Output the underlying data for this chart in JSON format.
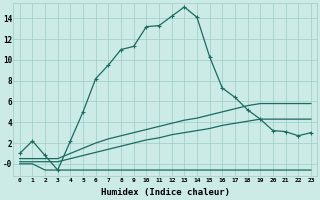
{
  "xlabel": "Humidex (Indice chaleur)",
  "bg_color": "#cceae6",
  "grid_color": "#9dccc6",
  "line_color": "#1a6b60",
  "xmin": -0.5,
  "xmax": 23.5,
  "ymin": -1.2,
  "ymax": 15.5,
  "ytick_vals": [
    0,
    2,
    4,
    6,
    8,
    10,
    12,
    14
  ],
  "ytick_labels": [
    "-0",
    "2",
    "4",
    "6",
    "8",
    "10",
    "12",
    "14"
  ],
  "xticks": [
    0,
    1,
    2,
    3,
    4,
    5,
    6,
    7,
    8,
    9,
    10,
    11,
    12,
    13,
    14,
    15,
    16,
    17,
    18,
    19,
    20,
    21,
    22,
    23
  ],
  "line1_x": [
    0,
    1,
    2,
    3,
    4,
    5,
    6,
    7,
    8,
    9,
    10,
    11,
    12,
    13,
    14,
    15,
    16,
    17,
    18,
    19,
    20,
    21,
    22,
    23
  ],
  "line1_y": [
    1.0,
    2.2,
    0.8,
    -0.6,
    2.2,
    5.0,
    8.2,
    9.5,
    11.0,
    11.3,
    13.2,
    13.3,
    14.2,
    15.1,
    14.1,
    10.3,
    7.3,
    6.4,
    5.2,
    4.3,
    3.2,
    3.1,
    2.7,
    3.0
  ],
  "line2_x": [
    0,
    1,
    2,
    3,
    4,
    5,
    6,
    7,
    8,
    9,
    10,
    11,
    12,
    13,
    14,
    15,
    16,
    17,
    18,
    19,
    20,
    21,
    22,
    23
  ],
  "line2_y": [
    0.5,
    0.5,
    0.5,
    0.5,
    1.0,
    1.5,
    2.0,
    2.4,
    2.7,
    3.0,
    3.3,
    3.6,
    3.9,
    4.2,
    4.4,
    4.7,
    5.0,
    5.3,
    5.6,
    5.8,
    5.8,
    5.8,
    5.8,
    5.8
  ],
  "line3_x": [
    0,
    1,
    2,
    3,
    4,
    5,
    6,
    7,
    8,
    9,
    10,
    11,
    12,
    13,
    14,
    15,
    16,
    17,
    18,
    19,
    20,
    21,
    22,
    23
  ],
  "line3_y": [
    0.2,
    0.2,
    0.2,
    0.2,
    0.5,
    0.8,
    1.1,
    1.4,
    1.7,
    2.0,
    2.3,
    2.5,
    2.8,
    3.0,
    3.2,
    3.4,
    3.7,
    3.9,
    4.1,
    4.3,
    4.3,
    4.3,
    4.3,
    4.3
  ],
  "line4_x": [
    0,
    1,
    2,
    3,
    4,
    5,
    6,
    7,
    8,
    9,
    10,
    11,
    12,
    13,
    14,
    15,
    16,
    17,
    18,
    19,
    20,
    21,
    22,
    23
  ],
  "line4_y": [
    0.0,
    0.0,
    -0.6,
    -0.6,
    -0.6,
    -0.6,
    -0.6,
    -0.6,
    -0.6,
    -0.6,
    -0.6,
    -0.6,
    -0.6,
    -0.6,
    -0.6,
    -0.6,
    -0.6,
    -0.6,
    -0.6,
    -0.6,
    -0.6,
    -0.6,
    -0.6,
    -0.6
  ],
  "linewidth": 0.9,
  "markersize": 3.0
}
